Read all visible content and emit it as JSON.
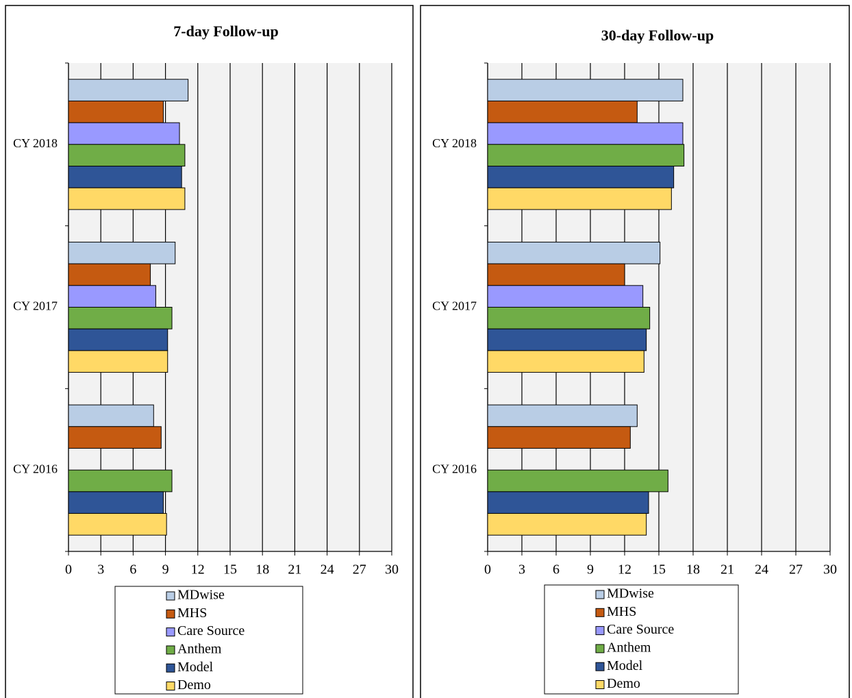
{
  "chart_data": [
    {
      "type": "bar",
      "orientation": "horizontal",
      "title": "7-day Follow-up",
      "categories": [
        "CY 2018",
        "CY 2017",
        "CY 2016"
      ],
      "series": [
        {
          "name": "MDwise",
          "color": "#b9cde5",
          "values": [
            11.1,
            9.9,
            7.9
          ]
        },
        {
          "name": "MHS",
          "color": "#c55a11",
          "values": [
            8.8,
            7.6,
            8.6
          ]
        },
        {
          "name": "Care Source",
          "color": "#9999ff",
          "values": [
            10.3,
            8.1,
            null
          ]
        },
        {
          "name": "Anthem",
          "color": "#70ad47",
          "values": [
            10.8,
            9.6,
            9.6
          ]
        },
        {
          "name": "Model",
          "color": "#2f5597",
          "values": [
            10.5,
            9.2,
            8.8
          ]
        },
        {
          "name": "Demo",
          "color": "#ffd966",
          "values": [
            10.8,
            9.2,
            9.1
          ]
        }
      ],
      "xlim": [
        0,
        30
      ],
      "xticks": [
        0,
        3,
        6,
        9,
        12,
        15,
        18,
        21,
        24,
        27,
        30
      ],
      "grid": true
    },
    {
      "type": "bar",
      "orientation": "horizontal",
      "title": "30-day Follow-up",
      "categories": [
        "CY 2018",
        "CY 2017",
        "CY 2016"
      ],
      "series": [
        {
          "name": "MDwise",
          "color": "#b9cde5",
          "values": [
            17.1,
            15.1,
            13.1
          ]
        },
        {
          "name": "MHS",
          "color": "#c55a11",
          "values": [
            13.1,
            12.0,
            12.5
          ]
        },
        {
          "name": "Care Source",
          "color": "#9999ff",
          "values": [
            17.1,
            13.6,
            null
          ]
        },
        {
          "name": "Anthem",
          "color": "#70ad47",
          "values": [
            17.2,
            14.2,
            15.8
          ]
        },
        {
          "name": "Model",
          "color": "#2f5597",
          "values": [
            16.3,
            13.9,
            14.1
          ]
        },
        {
          "name": "Demo",
          "color": "#ffd966",
          "values": [
            16.1,
            13.7,
            13.9
          ]
        }
      ],
      "xlim": [
        0,
        30
      ],
      "xticks": [
        0,
        3,
        6,
        9,
        12,
        15,
        18,
        21,
        24,
        27,
        30
      ],
      "grid": true
    }
  ]
}
